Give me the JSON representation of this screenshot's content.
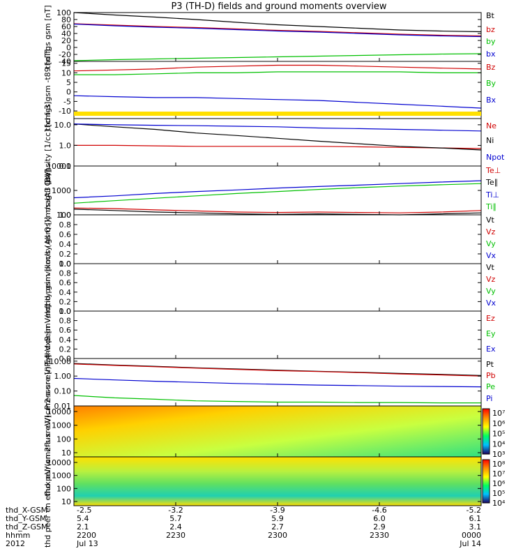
{
  "title": "P3 (TH-D) fields and ground moments overview",
  "colors": {
    "black": "#000000",
    "red": "#d00000",
    "green": "#00c000",
    "blue": "#0000d0",
    "purple": "#8000ff",
    "yellow": "#ffe000"
  },
  "chart_data": [
    {
      "id": "fgs-gsm",
      "type": "line",
      "ylabel": "thd fgs gsm [nT]",
      "ylim": [
        -40,
        100
      ],
      "ticks": [
        "100",
        "80",
        "60",
        "40",
        "20",
        "0",
        "-20",
        "-40"
      ],
      "series": [
        {
          "name": "Bt",
          "color": "black",
          "values": [
            100,
            93,
            87,
            80,
            72,
            65,
            60,
            55,
            50,
            47,
            45
          ]
        },
        {
          "name": "bz",
          "color": "red",
          "values": [
            68,
            64,
            60,
            57,
            53,
            49,
            46,
            42,
            38,
            35,
            33
          ]
        },
        {
          "name": "by",
          "color": "green",
          "values": [
            -38,
            -35,
            -33,
            -31,
            -29,
            -27,
            -25,
            -23,
            -21,
            -19,
            -18
          ]
        },
        {
          "name": "bx",
          "color": "blue",
          "values": [
            67,
            62,
            58,
            55,
            51,
            47,
            44,
            40,
            36,
            33,
            31
          ]
        }
      ]
    },
    {
      "id": "fgs-gsm-t89",
      "type": "line",
      "ylabel": "thd fgs gsm -t89 [nT]",
      "ylim": [
        -14,
        16
      ],
      "ticks": [
        "15",
        "10",
        "5",
        "0",
        "-5",
        "-10"
      ],
      "series": [
        {
          "name": "Bz",
          "color": "red",
          "values": [
            11,
            11.5,
            12,
            13,
            13.5,
            14,
            14,
            13.5,
            13,
            12.5,
            12
          ]
        },
        {
          "name": "By",
          "color": "green",
          "values": [
            9,
            9,
            9.5,
            10,
            10,
            10.5,
            10.5,
            10.5,
            10.5,
            10,
            10
          ]
        },
        {
          "name": "Bx",
          "color": "blue",
          "values": [
            -2,
            -2.5,
            -3,
            -3,
            -3.5,
            -4,
            -4.5,
            -5.5,
            -6.5,
            -7.5,
            -8.5
          ]
        }
      ]
    },
    {
      "id": "density",
      "type": "line",
      "ylabel": "Density [1/cc] [cm-3]",
      "log": true,
      "ylim": [
        0.1,
        20
      ],
      "ticks": [
        "10.0",
        "1.0",
        "0.1"
      ],
      "series": [
        {
          "name": "Ne",
          "color": "red",
          "values": [
            1.0,
            1.0,
            0.95,
            0.9,
            0.9,
            0.9,
            0.9,
            0.85,
            0.8,
            0.75,
            0.7
          ]
        },
        {
          "name": "Ni",
          "color": "black",
          "values": [
            11,
            8,
            6,
            4,
            3,
            2.2,
            1.6,
            1.2,
            0.9,
            0.75,
            0.6
          ]
        },
        {
          "name": "Npot",
          "color": "blue",
          "values": [
            11,
            10,
            9.5,
            9,
            8.5,
            8,
            7,
            6.5,
            6,
            5.5,
            5
          ]
        }
      ]
    },
    {
      "id": "temperature",
      "type": "line",
      "ylabel": "magt3 [eV]",
      "log": true,
      "ylim": [
        100,
        10000
      ],
      "ticks": [
        "10000",
        "1000",
        "100"
      ],
      "series": [
        {
          "name": "Te⊥",
          "color": "red",
          "values": [
            190,
            180,
            160,
            145,
            130,
            125,
            130,
            125,
            120,
            130,
            150
          ]
        },
        {
          "name": "Te∥",
          "color": "black",
          "values": [
            170,
            150,
            130,
            120,
            110,
            105,
            110,
            105,
            100,
            110,
            120
          ]
        },
        {
          "name": "Ti⊥",
          "color": "blue",
          "values": [
            500,
            600,
            750,
            900,
            1050,
            1250,
            1450,
            1650,
            1900,
            2200,
            2500
          ]
        },
        {
          "name": "Ti∥",
          "color": "green",
          "values": [
            300,
            380,
            480,
            600,
            750,
            900,
            1100,
            1300,
            1500,
            1700,
            1900
          ]
        }
      ]
    },
    {
      "id": "peir-velocity",
      "type": "line",
      "ylabel": "thd peir velocity gsm [km/s (All Qs)]",
      "ylim": [
        0,
        1
      ],
      "ticks": [
        "1.0",
        "0.8",
        "0.6",
        "0.4",
        "0.2",
        "0.0"
      ],
      "series": [
        {
          "name": "Vt",
          "color": "black",
          "values": []
        },
        {
          "name": "Vz",
          "color": "red",
          "values": []
        },
        {
          "name": "Vy",
          "color": "green",
          "values": []
        },
        {
          "name": "Vx",
          "color": "blue",
          "values": []
        }
      ]
    },
    {
      "id": "peer-velocity",
      "type": "line",
      "ylabel": "thd peer velocity gsm [km/s (All Qs)]",
      "ylim": [
        0,
        1
      ],
      "ticks": [
        "1.0",
        "0.8",
        "0.6",
        "0.4",
        "0.2",
        "0.0"
      ],
      "series": [
        {
          "name": "Vt",
          "color": "black",
          "values": []
        },
        {
          "name": "Vz",
          "color": "red",
          "values": []
        },
        {
          "name": "Vy",
          "color": "green",
          "values": []
        },
        {
          "name": "Vx",
          "color": "blue",
          "values": []
        }
      ]
    },
    {
      "id": "efield",
      "type": "line",
      "ylabel": "E=-VxB [mV/m]",
      "ylim": [
        0,
        1
      ],
      "ticks": [
        "1.0",
        "0.8",
        "0.6",
        "0.4",
        "0.2",
        "0.0"
      ],
      "series": [
        {
          "name": "Ez",
          "color": "red",
          "values": []
        },
        {
          "name": "Ey",
          "color": "green",
          "values": []
        },
        {
          "name": "Ex",
          "color": "blue",
          "values": []
        }
      ]
    },
    {
      "id": "pressure",
      "type": "line",
      "ylabel": "Pressure [nPa]",
      "log": true,
      "ylim": [
        0.01,
        15
      ],
      "ticks": [
        "10.00",
        "1.00",
        "0.10",
        "0.01"
      ],
      "series": [
        {
          "name": "Pt",
          "color": "black",
          "values": [
            7,
            5.5,
            4.5,
            3.6,
            3,
            2.5,
            2.1,
            1.8,
            1.5,
            1.3,
            1.1
          ]
        },
        {
          "name": "Pb",
          "color": "red",
          "values": [
            6.5,
            5.2,
            4.2,
            3.4,
            2.8,
            2.3,
            2,
            1.7,
            1.4,
            1.2,
            1
          ]
        },
        {
          "name": "Pe",
          "color": "green",
          "values": [
            0.05,
            0.035,
            0.028,
            0.022,
            0.02,
            0.018,
            0.018,
            0.017,
            0.017,
            0.016,
            0.016
          ]
        },
        {
          "name": "Pi",
          "color": "blue",
          "values": [
            0.7,
            0.55,
            0.45,
            0.38,
            0.32,
            0.28,
            0.25,
            0.23,
            0.21,
            0.2,
            0.19
          ]
        }
      ]
    },
    {
      "id": "peir-spectrogram",
      "type": "heatmap",
      "ylabel": "thd peir en eflux eV/(cm2-s-sr-eV)",
      "ticks": [
        "10000",
        "1000",
        "100",
        "10"
      ],
      "colorbar": [
        "10⁷",
        "10⁶",
        "10⁵",
        "10⁴",
        "10³"
      ]
    },
    {
      "id": "peer-spectrogram",
      "type": "heatmap",
      "ylabel": "thd peer en eflux eV/(cm2-s-sr-eV)",
      "ticks": [
        "10000",
        "1000",
        "100",
        "10"
      ],
      "colorbar": [
        "10⁸",
        "10⁷",
        "10⁶",
        "10⁵",
        "10⁴"
      ]
    }
  ],
  "ephemeris": {
    "labels": [
      "thd_X-GSM",
      "thd_Y-GSM",
      "thd_Z-GSM",
      "hhmm",
      "2012"
    ],
    "columns": [
      [
        "-2.5",
        "5.4",
        "2.1",
        "2200",
        "Jul 13"
      ],
      [
        "-3.2",
        "5.7",
        "2.4",
        "2230",
        ""
      ],
      [
        "-3.9",
        "5.9",
        "2.7",
        "2300",
        ""
      ],
      [
        "-4.6",
        "6.0",
        "2.9",
        "2330",
        ""
      ],
      [
        "-5.2",
        "6.1",
        "3.1",
        "0000",
        "Jul 14"
      ]
    ]
  }
}
